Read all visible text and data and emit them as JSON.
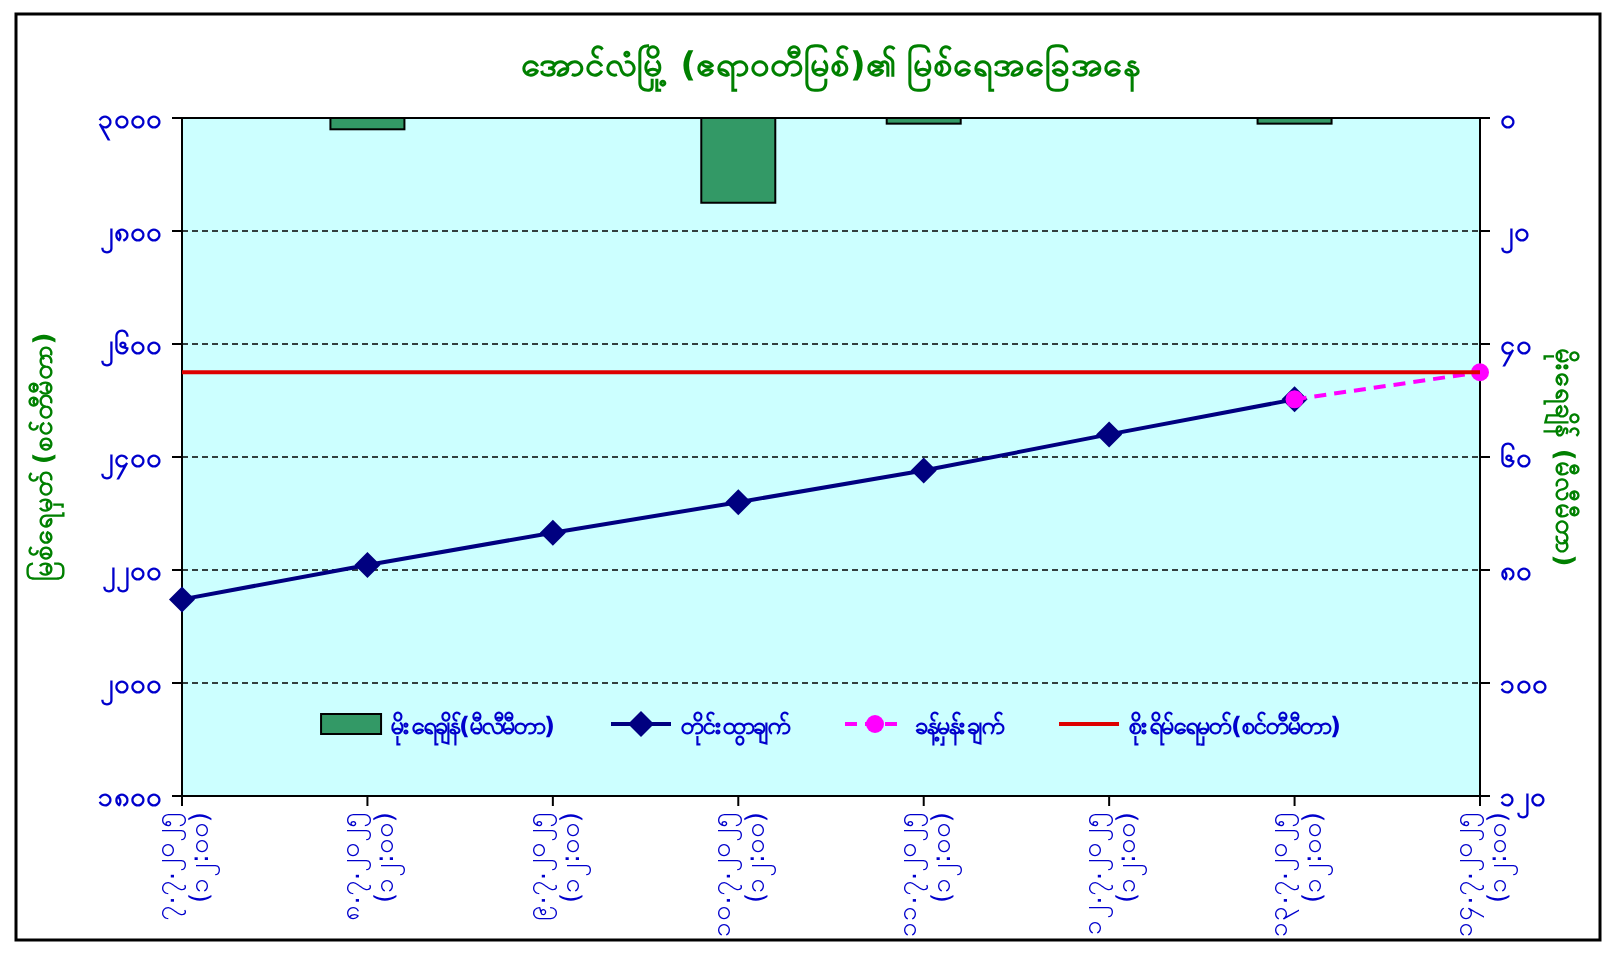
{
  "chart_data": {
    "type": "line",
    "title": "အောင်လံမြို့ (ဧရာဝတီမြစ်)၏ မြစ်ရေအခြေအနေ",
    "ylabel": "မြစ်ရေမှတ် (စင်တီမီတာ)",
    "y2label": "မိုးရေချိန် (မီလီမီတာ)",
    "categories": [
      "၇.၇.၂၀၂၅\n(၁၂:၀၀)",
      "၈.၇.၂၀၂၅\n(၁၂:၀၀)",
      "၉.၇.၂၀၂၅\n(၁၂:၀၀)",
      "၁၀.၇.၂၀၂၅\n(၁၂:၀၀)",
      "၁၁.၇.၂၀၂၅\n(၁၂:၀၀)",
      "၁၂.၇.၂၀၂၅\n(၁၂:၀၀)",
      "၁၃.၇.၂၀၂၅\n(၁၂:၀၀)",
      "၁၄.၇.၂၀၂၅\n(၁၂:၀၀)"
    ],
    "series": [
      {
        "name": "မိုးရေချိန်(မီလီမီတာ)",
        "type": "bar",
        "axis": "y2",
        "color": "#339966",
        "values": [
          0,
          2,
          0,
          15,
          1,
          0,
          1,
          0
        ]
      },
      {
        "name": "တိုင်းထွာချက်",
        "color": "#000080",
        "marker": "diamond",
        "line_style": "solid",
        "values": [
          2148,
          2209,
          2266,
          2320,
          2376,
          2440,
          2502,
          null
        ]
      },
      {
        "name": "ခန့်မှန်းချက်",
        "color": "#ff00ff",
        "marker": "circle",
        "line_style": "dashed",
        "values": [
          null,
          null,
          null,
          null,
          null,
          null,
          2502,
          2550
        ]
      },
      {
        "name": "စိုးရိမ်ရေမှတ်(စင်တီမီတာ)",
        "color": "#dd0000",
        "marker": "none",
        "line_style": "solid",
        "values": [
          2550,
          2550,
          2550,
          2550,
          2550,
          2550,
          2550,
          2550
        ]
      }
    ],
    "ylim": [
      1800,
      3000
    ],
    "yticks": [
      {
        "value": 1800,
        "label": "၁၈၀၀"
      },
      {
        "value": 2000,
        "label": "၂၀၀၀"
      },
      {
        "value": 2200,
        "label": "၂၂၀၀"
      },
      {
        "value": 2400,
        "label": "၂၄၀၀"
      },
      {
        "value": 2600,
        "label": "၂၆၀၀"
      },
      {
        "value": 2800,
        "label": "၂၈၀၀"
      },
      {
        "value": 3000,
        "label": "၃၀၀၀"
      }
    ],
    "y2lim": [
      120,
      0
    ],
    "y2ticks": [
      {
        "value": 0,
        "label": "၀"
      },
      {
        "value": 20,
        "label": "၂၀"
      },
      {
        "value": 40,
        "label": "၄၀"
      },
      {
        "value": 60,
        "label": "၆၀"
      },
      {
        "value": 80,
        "label": "၈၀"
      },
      {
        "value": 100,
        "label": "၁၀၀"
      },
      {
        "value": 120,
        "label": "၁၂၀"
      }
    ],
    "grid": "y",
    "legend": "bottom"
  }
}
